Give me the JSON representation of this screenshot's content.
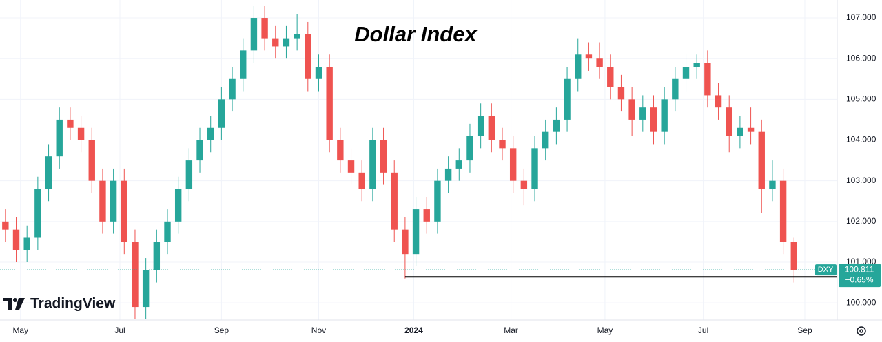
{
  "chart_data": {
    "type": "candlestick",
    "title": "Dollar Index",
    "brand": "TradingView",
    "symbol": "DXY",
    "last_price": 100.811,
    "change": "−0.65%",
    "up_color": "#26a69a",
    "down_color": "#ef5350",
    "grid": true,
    "support_level": {
      "value": 100.64,
      "x_start": 37
    },
    "x": [
      0,
      1,
      2,
      3,
      4,
      5,
      6,
      7,
      8,
      9,
      10,
      11,
      12,
      13,
      14,
      15,
      16,
      17,
      18,
      19,
      20,
      21,
      22,
      23,
      24,
      25,
      26,
      27,
      28,
      29,
      30,
      31,
      32,
      33,
      34,
      35,
      36,
      37,
      38,
      39,
      40,
      41,
      42,
      43,
      44,
      45,
      46,
      47,
      48,
      49,
      50,
      51,
      52,
      53,
      54,
      55,
      56,
      57,
      58,
      59,
      60,
      61,
      62,
      63,
      64,
      65,
      66,
      67,
      68,
      69,
      70,
      71,
      72,
      73
    ],
    "open": [
      102.0,
      101.8,
      101.3,
      101.6,
      102.8,
      103.6,
      104.5,
      104.3,
      104.0,
      103.0,
      102.0,
      103.0,
      101.5,
      99.9,
      100.8,
      101.5,
      102.0,
      102.8,
      103.5,
      104.0,
      104.3,
      105.0,
      105.5,
      106.2,
      107.0,
      106.5,
      106.3,
      106.5,
      106.6,
      105.5,
      105.8,
      104.0,
      103.5,
      103.2,
      102.8,
      104.0,
      103.2,
      101.8,
      101.2,
      102.3,
      102.0,
      103.0,
      103.3,
      103.5,
      104.1,
      104.6,
      104.0,
      103.8,
      103.0,
      102.8,
      103.8,
      104.2,
      104.5,
      105.5,
      106.1,
      106.0,
      105.8,
      105.3,
      105.0,
      104.5,
      104.8,
      104.2,
      105.0,
      105.5,
      105.8,
      105.9,
      105.1,
      104.8,
      104.1,
      104.3,
      104.2,
      102.8,
      103.0,
      101.5
    ],
    "high": [
      102.3,
      102.1,
      101.9,
      103.1,
      103.9,
      104.8,
      104.8,
      104.6,
      104.3,
      103.3,
      103.3,
      103.3,
      101.8,
      101.1,
      101.8,
      102.3,
      103.1,
      103.8,
      104.3,
      104.6,
      105.3,
      105.8,
      106.5,
      107.3,
      107.3,
      106.8,
      106.8,
      107.1,
      106.9,
      106.1,
      106.1,
      104.3,
      103.8,
      103.5,
      104.3,
      104.3,
      103.5,
      102.1,
      102.6,
      102.6,
      103.3,
      103.6,
      103.8,
      104.4,
      104.9,
      104.9,
      104.3,
      104.1,
      103.3,
      104.1,
      104.5,
      104.8,
      105.8,
      106.5,
      106.4,
      106.4,
      106.1,
      105.6,
      105.3,
      105.1,
      105.1,
      105.3,
      105.8,
      106.1,
      106.1,
      106.2,
      105.4,
      105.1,
      104.6,
      104.8,
      104.5,
      103.5,
      103.3,
      101.6
    ],
    "low": [
      101.5,
      101.0,
      101.0,
      101.3,
      102.5,
      103.3,
      104.0,
      103.7,
      102.7,
      101.7,
      101.7,
      101.2,
      99.6,
      99.6,
      100.5,
      101.2,
      101.7,
      102.5,
      103.2,
      103.7,
      104.0,
      104.7,
      105.2,
      105.9,
      106.2,
      106.0,
      106.0,
      106.2,
      105.2,
      105.2,
      103.7,
      103.2,
      102.9,
      102.5,
      102.5,
      102.9,
      101.5,
      100.6,
      100.9,
      101.7,
      101.7,
      102.7,
      103.0,
      103.2,
      103.8,
      103.7,
      103.5,
      102.7,
      102.4,
      102.5,
      103.5,
      103.9,
      104.2,
      105.2,
      105.7,
      105.5,
      105.0,
      104.7,
      104.1,
      104.2,
      103.9,
      103.9,
      104.7,
      105.2,
      105.5,
      104.8,
      104.5,
      103.7,
      103.8,
      103.9,
      102.2,
      102.5,
      101.2,
      100.5
    ],
    "close": [
      101.8,
      101.3,
      101.6,
      102.8,
      103.6,
      104.5,
      104.3,
      104.0,
      103.0,
      102.0,
      103.0,
      101.5,
      99.9,
      100.8,
      101.5,
      102.0,
      102.8,
      103.5,
      104.0,
      104.3,
      105.0,
      105.5,
      106.2,
      107.0,
      106.5,
      106.3,
      106.5,
      106.6,
      105.5,
      105.8,
      104.0,
      103.5,
      103.2,
      102.8,
      104.0,
      103.2,
      101.8,
      101.2,
      102.3,
      102.0,
      103.0,
      103.3,
      103.5,
      104.1,
      104.6,
      104.0,
      103.8,
      103.0,
      102.8,
      103.8,
      104.2,
      104.5,
      105.5,
      106.1,
      106.0,
      105.8,
      105.3,
      105.0,
      104.5,
      104.8,
      104.2,
      105.0,
      105.5,
      105.8,
      105.9,
      105.1,
      104.8,
      104.1,
      104.3,
      104.2,
      102.8,
      103.0,
      101.5,
      100.8
    ],
    "xlim": [
      -0.5,
      77
    ],
    "xticks": [
      {
        "value": 1.4,
        "label": "May"
      },
      {
        "value": 10.6,
        "label": "Jul"
      },
      {
        "value": 20.0,
        "label": "Sep"
      },
      {
        "value": 29.0,
        "label": "Nov"
      },
      {
        "value": 37.8,
        "label": "2024"
      },
      {
        "value": 46.8,
        "label": "Mar"
      },
      {
        "value": 55.5,
        "label": "May"
      },
      {
        "value": 64.6,
        "label": "Jul"
      },
      {
        "value": 74.0,
        "label": "Sep"
      }
    ],
    "ylim": [
      99.58,
      107.44
    ],
    "yticks": [
      {
        "value": 100,
        "label": "100.000"
      },
      {
        "value": 101,
        "label": "101.000"
      },
      {
        "value": 102,
        "label": "102.000"
      },
      {
        "value": 103,
        "label": "103.000"
      },
      {
        "value": 104,
        "label": "104.000"
      },
      {
        "value": 105,
        "label": "105.000"
      },
      {
        "value": 106,
        "label": "106.000"
      },
      {
        "value": 107,
        "label": "107.000"
      }
    ]
  }
}
